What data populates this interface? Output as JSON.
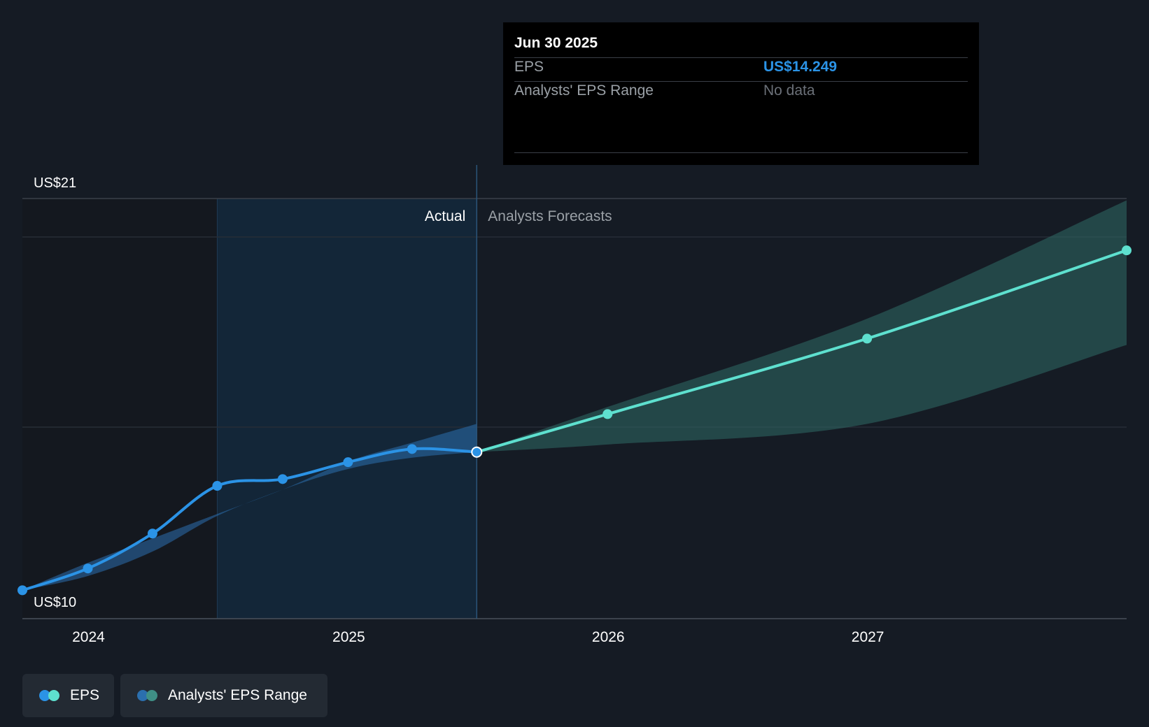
{
  "chart_data": {
    "type": "line",
    "y_tick_labels": [
      "US$21",
      "US$10"
    ],
    "ylim": [
      10,
      21
    ],
    "xlim": [
      "2023-09-30",
      "2027-12-31"
    ],
    "x_tick_labels": [
      "2024",
      "2025",
      "2026",
      "2027"
    ],
    "x_tick_dates": [
      "2024-01-01",
      "2025-01-01",
      "2026-01-01",
      "2027-01-01"
    ],
    "divider_date": "2025-06-30",
    "highlight_start_date": "2024-06-30",
    "section_labels": {
      "actual": "Actual",
      "forecast": "Analysts Forecasts"
    },
    "series": [
      {
        "name": "EPS",
        "kind": "actual",
        "color": "#2b93e6",
        "x": [
          "2023-09-30",
          "2023-12-31",
          "2024-03-31",
          "2024-06-30",
          "2024-09-30",
          "2024-12-31",
          "2025-03-31",
          "2025-06-30"
        ],
        "y": [
          10.57,
          11.15,
          12.08,
          13.35,
          13.53,
          13.98,
          14.33,
          14.249
        ]
      },
      {
        "name": "EPS",
        "kind": "forecast",
        "color": "#5ee0cf",
        "x": [
          "2025-06-30",
          "2025-12-31",
          "2026-12-31",
          "2027-12-31"
        ],
        "y": [
          14.249,
          15.26,
          17.27,
          19.62
        ]
      }
    ],
    "ranges": [
      {
        "name": "Analysts' EPS Range",
        "kind": "actual",
        "color": "#2b6fae",
        "x": [
          "2023-09-30",
          "2023-12-31",
          "2024-03-31",
          "2024-06-30",
          "2024-09-30",
          "2024-12-31",
          "2025-03-31",
          "2025-06-30"
        ],
        "low": [
          10.57,
          10.95,
          11.6,
          12.55,
          13.25,
          13.8,
          14.1,
          14.249
        ],
        "high": [
          10.57,
          11.3,
          11.95,
          12.6,
          13.25,
          14.0,
          14.5,
          15.0
        ]
      },
      {
        "name": "Analysts' EPS Range",
        "kind": "forecast",
        "color": "#2f6b66",
        "x": [
          "2025-06-30",
          "2025-12-31",
          "2026-12-31",
          "2027-12-31"
        ],
        "low": [
          14.249,
          14.45,
          15.0,
          17.1
        ],
        "high": [
          14.249,
          15.45,
          17.8,
          20.95
        ]
      }
    ]
  },
  "tooltip": {
    "date": "Jun 30 2025",
    "rows": [
      {
        "label": "EPS",
        "value": "US$14.249"
      },
      {
        "label": "Analysts' EPS Range",
        "value": "No data"
      }
    ]
  },
  "legend": [
    {
      "label": "EPS",
      "colors": [
        "#2b93e6",
        "#5ee0cf"
      ]
    },
    {
      "label": "Analysts' EPS Range",
      "colors": [
        "#2b6fae",
        "#3f8f86"
      ]
    }
  ]
}
